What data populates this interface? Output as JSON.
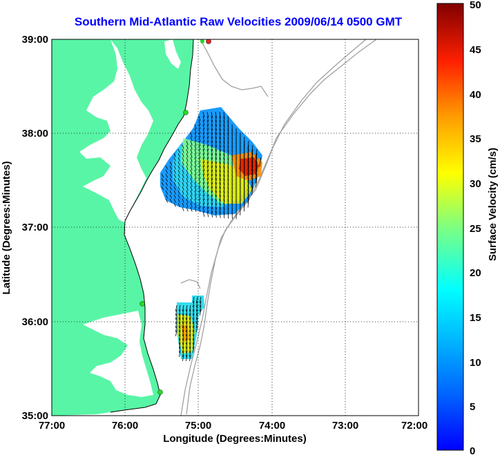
{
  "title": "Southern Mid-Atlantic Raw Velocities 2009/06/14 0500 GMT",
  "axes": {
    "xlabel": "Longitude (Degrees:Minutes)",
    "ylabel": "Latitude (Degrees:Minutes)",
    "x_ticks": [
      "77:00",
      "76:00",
      "75:00",
      "74:00",
      "73:00",
      "72:00"
    ],
    "y_ticks": [
      "39:00",
      "38:00",
      "37:00",
      "36:00",
      "35:00"
    ],
    "xlim": [
      -77,
      -72
    ],
    "ylim": [
      35,
      39
    ],
    "grid": "dotted"
  },
  "colorbar": {
    "label": "Surface Velocity (cm/s)",
    "ticks": [
      "50",
      "45",
      "40",
      "35",
      "30",
      "25",
      "20",
      "15",
      "10",
      "5",
      "0"
    ],
    "range": [
      0,
      50
    ]
  },
  "colors": {
    "land": "#58f5a6",
    "title": "#0000ff",
    "bathymetry": "#a0a0a0",
    "station": "#22dd22",
    "station_alt": "#ff2222"
  }
}
